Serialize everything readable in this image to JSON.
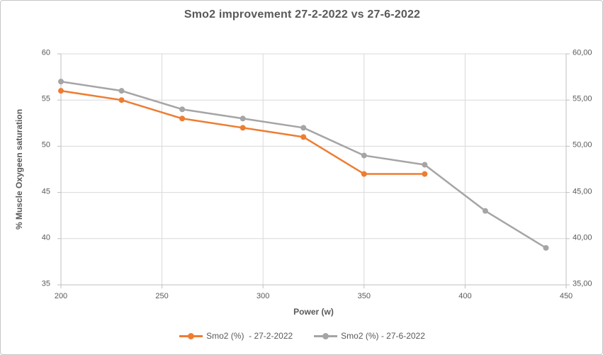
{
  "chart_data": {
    "type": "line",
    "title": "Smo2 improvement 27-2-2022 vs 27-6-2022",
    "xlabel": "Power (w)",
    "ylabel": "% Muscle Oxygeen saturation",
    "xlim": [
      200,
      450
    ],
    "ylim": [
      35,
      60
    ],
    "x_ticks": [
      200,
      250,
      300,
      350,
      400,
      450
    ],
    "x_tick_labels": [
      "200",
      "250",
      "300",
      "350",
      "400",
      "450"
    ],
    "y_ticks": [
      35,
      40,
      45,
      50,
      55,
      60
    ],
    "y_tick_labels_left": [
      "35",
      "40",
      "45",
      "50",
      "55",
      "60"
    ],
    "y_tick_labels_right": [
      "35,00",
      "40,00",
      "45,00",
      "50,00",
      "55,00",
      "60,00"
    ],
    "grid": true,
    "legend_position": "bottom",
    "series": [
      {
        "name": "Smo2 (%)  - 27-2-2022",
        "color": "#ED7D31",
        "x": [
          200,
          230,
          260,
          290,
          320,
          350,
          380
        ],
        "values": [
          56,
          55,
          53,
          52,
          51,
          47,
          47
        ]
      },
      {
        "name": "Smo2 (%) - 27-6-2022",
        "color": "#A5A5A5",
        "x": [
          200,
          230,
          260,
          290,
          320,
          350,
          380,
          410,
          440
        ],
        "values": [
          57,
          56,
          54,
          53,
          52,
          49,
          48,
          43,
          39
        ]
      }
    ],
    "colors": {
      "background": "#FFFFFF",
      "gridline": "#D9D9D9",
      "axis_line": "#BFBFBF",
      "tick_label": "#595959",
      "title": "#595959",
      "axis_title": "#595959",
      "legend_text": "#595959"
    }
  }
}
